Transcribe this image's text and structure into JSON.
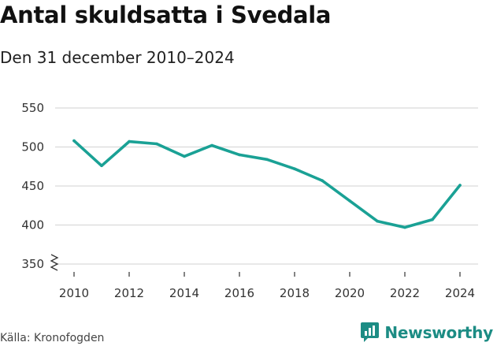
{
  "header": {
    "title": "Antal skuldsatta i Svedala",
    "subtitle": "Den 31 december 2010–2024"
  },
  "footer": {
    "source": "Källa: Kronofogden",
    "brand": "Newsworthy",
    "brand_icon": "newsworthy-logo-icon"
  },
  "colors": {
    "line": "#1aa195",
    "grid": "#d9d9d9",
    "brand": "#1c8c84"
  },
  "chart_data": {
    "type": "line",
    "title": "Antal skuldsatta i Svedala",
    "subtitle": "Den 31 december 2010–2024",
    "xlabel": "",
    "ylabel": "",
    "x": [
      2010,
      2011,
      2012,
      2013,
      2014,
      2015,
      2016,
      2017,
      2018,
      2019,
      2020,
      2021,
      2022,
      2023,
      2024
    ],
    "series": [
      {
        "values": [
          508,
          476,
          507,
          504,
          488,
          502,
          490,
          484,
          472,
          457,
          431,
          405,
          397,
          407,
          451
        ]
      }
    ],
    "ylim": [
      340,
      560
    ],
    "yticks": [
      350,
      400,
      450,
      500,
      550
    ],
    "xticks": [
      2010,
      2012,
      2014,
      2016,
      2018,
      2020,
      2022,
      2024
    ],
    "axis_break": true,
    "grid": true,
    "legend": "none"
  }
}
